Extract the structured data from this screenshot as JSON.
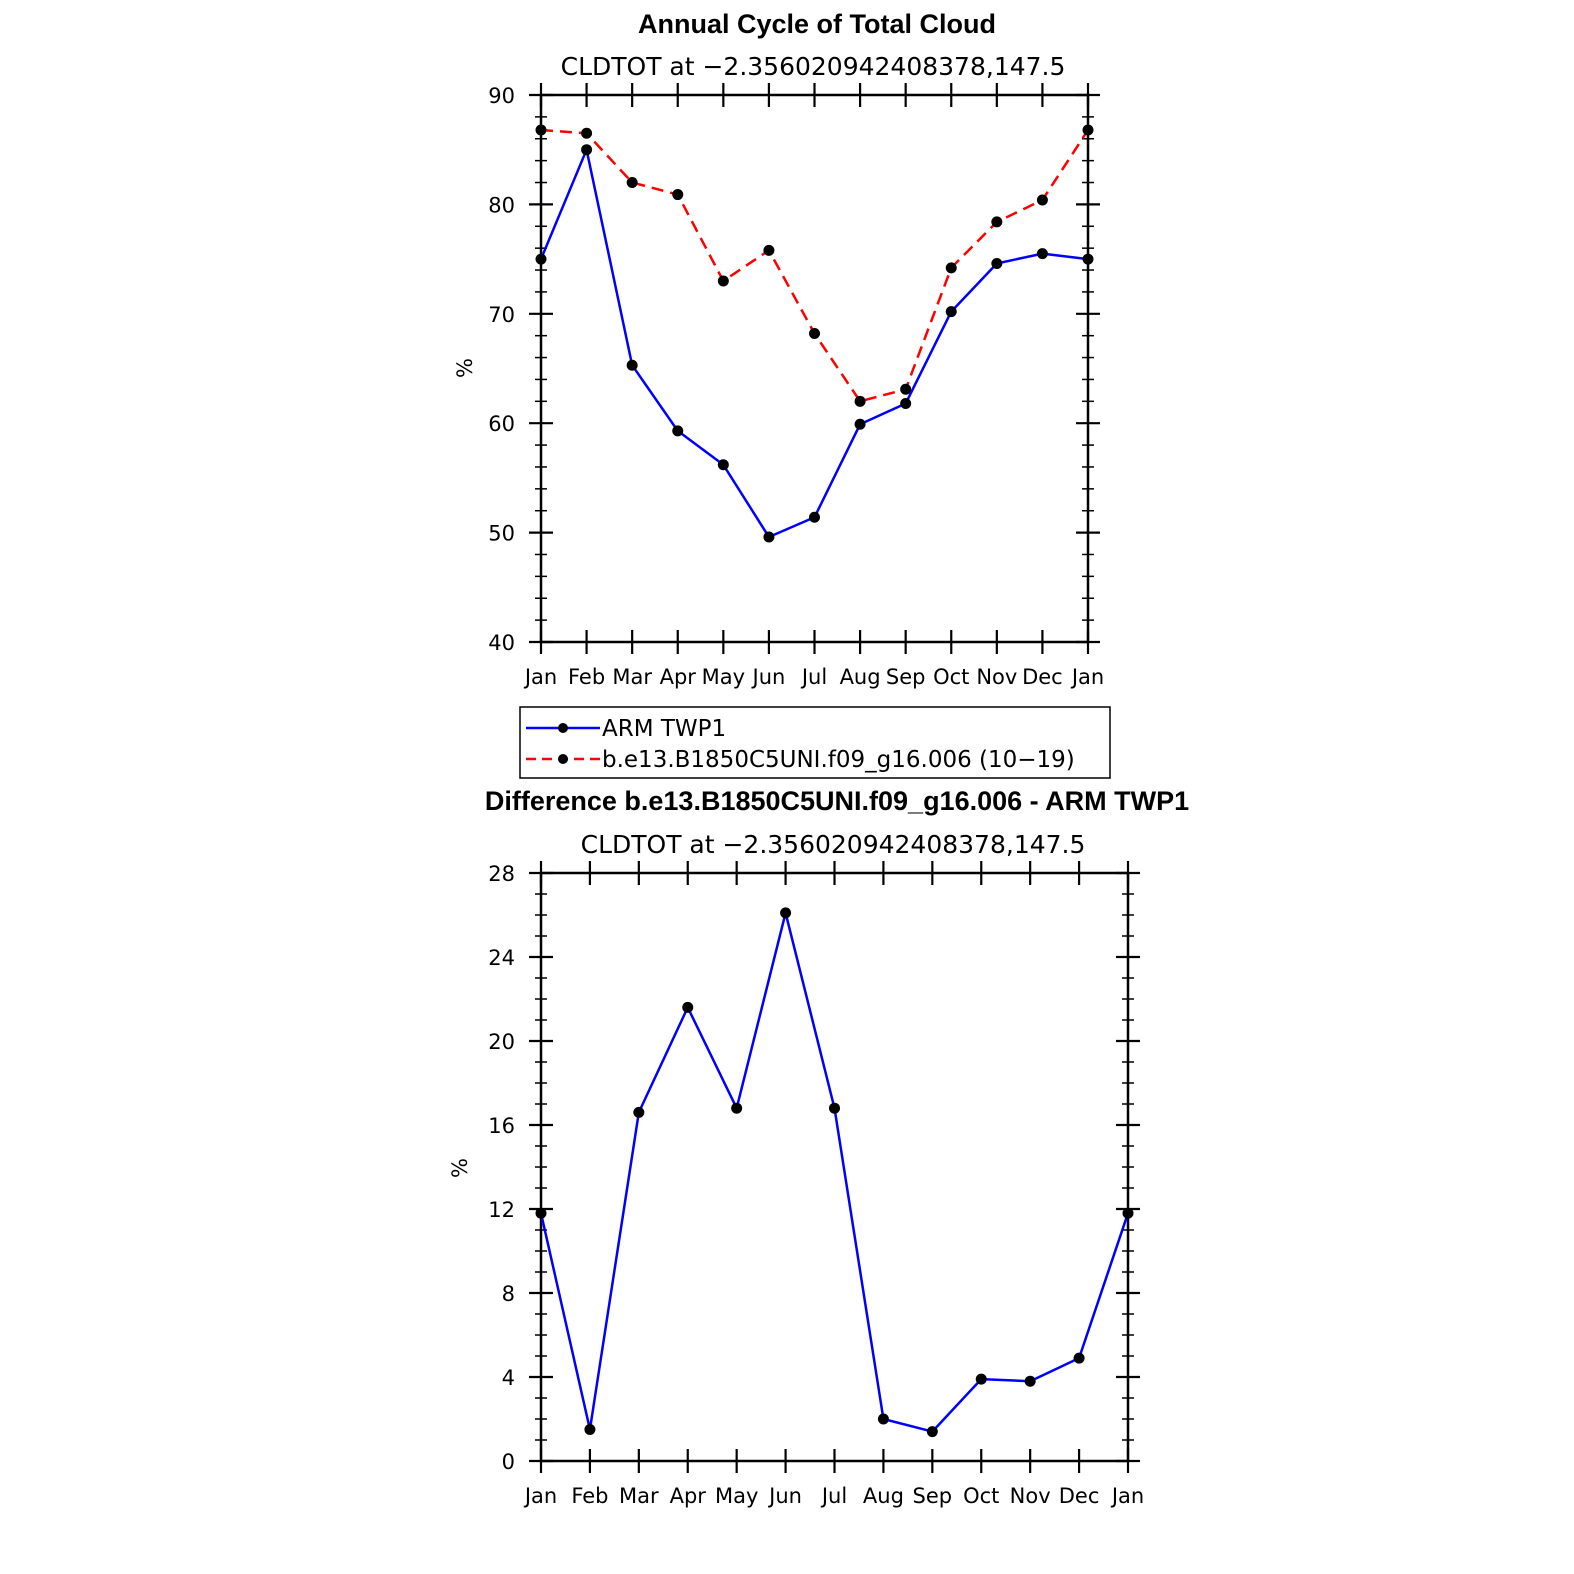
{
  "chart_data": [
    {
      "type": "line",
      "title": "Annual Cycle of Total Cloud",
      "subtitle": "CLDTOT at −2.356020942408378,147.5",
      "ylabel": "%",
      "ylim": [
        40,
        90
      ],
      "yticks": [
        "90",
        "80",
        "70",
        "60",
        "50",
        "40"
      ],
      "categories": [
        "Jan",
        "Feb",
        "Mar",
        "Apr",
        "May",
        "Jun",
        "Jul",
        "Aug",
        "Sep",
        "Oct",
        "Nov",
        "Dec",
        "Jan"
      ],
      "series": [
        {
          "name": "ARM TWP1",
          "color": "#0000ff",
          "dash": "solid",
          "values": [
            75.0,
            85.0,
            65.3,
            59.3,
            56.2,
            49.6,
            51.4,
            59.9,
            61.8,
            70.2,
            74.6,
            75.5,
            75.0
          ]
        },
        {
          "name": "b.e13.B1850C5UNI.f09_g16.006 (10−19)",
          "color": "#ff0000",
          "dash": "dashed",
          "values": [
            86.8,
            86.5,
            82.0,
            80.9,
            73.0,
            75.8,
            68.2,
            62.0,
            63.1,
            74.2,
            78.4,
            80.4,
            86.8
          ]
        }
      ],
      "legend": "bottom"
    },
    {
      "type": "line",
      "title": "Difference b.e13.B1850C5UNI.f09_g16.006 - ARM TWP1",
      "subtitle": "CLDTOT at −2.356020942408378,147.5",
      "ylabel": "%",
      "ylim": [
        0,
        28
      ],
      "yticks": [
        "28",
        "24",
        "20",
        "16",
        "12",
        "8",
        "4",
        "0"
      ],
      "categories": [
        "Jan",
        "Feb",
        "Mar",
        "Apr",
        "May",
        "Jun",
        "Jul",
        "Aug",
        "Sep",
        "Oct",
        "Nov",
        "Dec",
        "Jan"
      ],
      "series": [
        {
          "color": "#0000ff",
          "dash": "solid",
          "values": [
            11.8,
            1.5,
            16.6,
            21.6,
            16.8,
            26.1,
            16.8,
            2.0,
            1.4,
            3.9,
            3.8,
            4.9,
            11.8
          ]
        }
      ]
    }
  ]
}
